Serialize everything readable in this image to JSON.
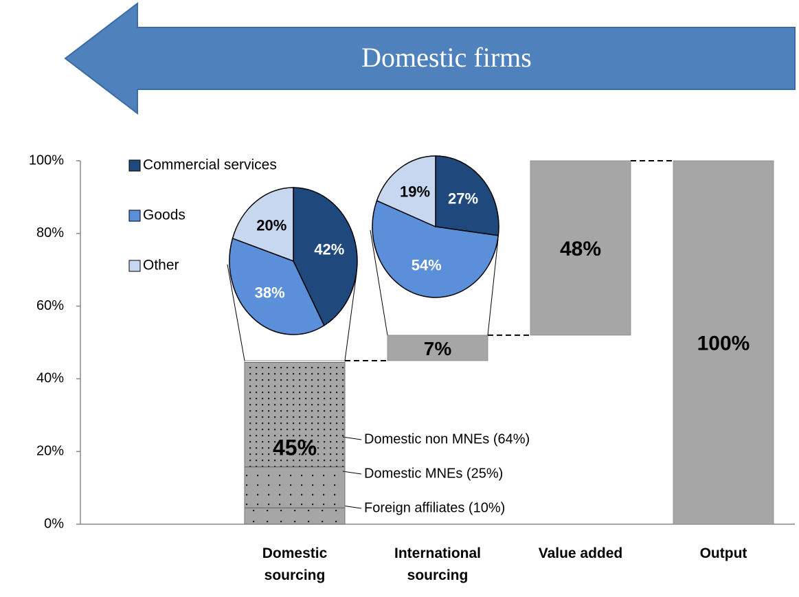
{
  "chart_data": {
    "type": "waterfall",
    "banner": "Domestic firms",
    "categories": [
      "Domestic sourcing",
      "International sourcing",
      "Value added",
      "Output"
    ],
    "values": [
      45,
      7,
      48,
      100
    ],
    "value_labels": [
      "45%",
      "7%",
      "48%",
      "100%"
    ],
    "measure": [
      "relative",
      "relative",
      "relative",
      "total"
    ],
    "color": "#a6a6a6",
    "ylim": [
      0,
      100
    ],
    "yticks": [
      {
        "value": 0,
        "label": "0%"
      },
      {
        "value": 20,
        "label": "20%"
      },
      {
        "value": 40,
        "label": "40%"
      },
      {
        "value": 60,
        "label": "60%"
      },
      {
        "value": 80,
        "label": "80%"
      },
      {
        "value": 100,
        "label": "100%"
      }
    ],
    "segments": [
      {
        "label": "Foreign affiliates (10%)",
        "share": 10
      },
      {
        "label": "Domestic MNEs (25%)",
        "share": 25
      },
      {
        "label": "Domestic non MNEs (64%)",
        "share": 64
      }
    ],
    "pie_legend": [
      "Commercial services",
      "Goods",
      "Other"
    ],
    "pie_colors": [
      "#1f497d",
      "#5b8fd9",
      "#c6d7ef"
    ],
    "pies": [
      {
        "values": [
          42,
          38,
          20
        ],
        "value_labels": [
          "42%",
          "38%",
          "20%"
        ]
      },
      {
        "values": [
          27,
          54,
          19
        ],
        "value_labels": [
          "27%",
          "54%",
          "19%"
        ]
      }
    ]
  }
}
